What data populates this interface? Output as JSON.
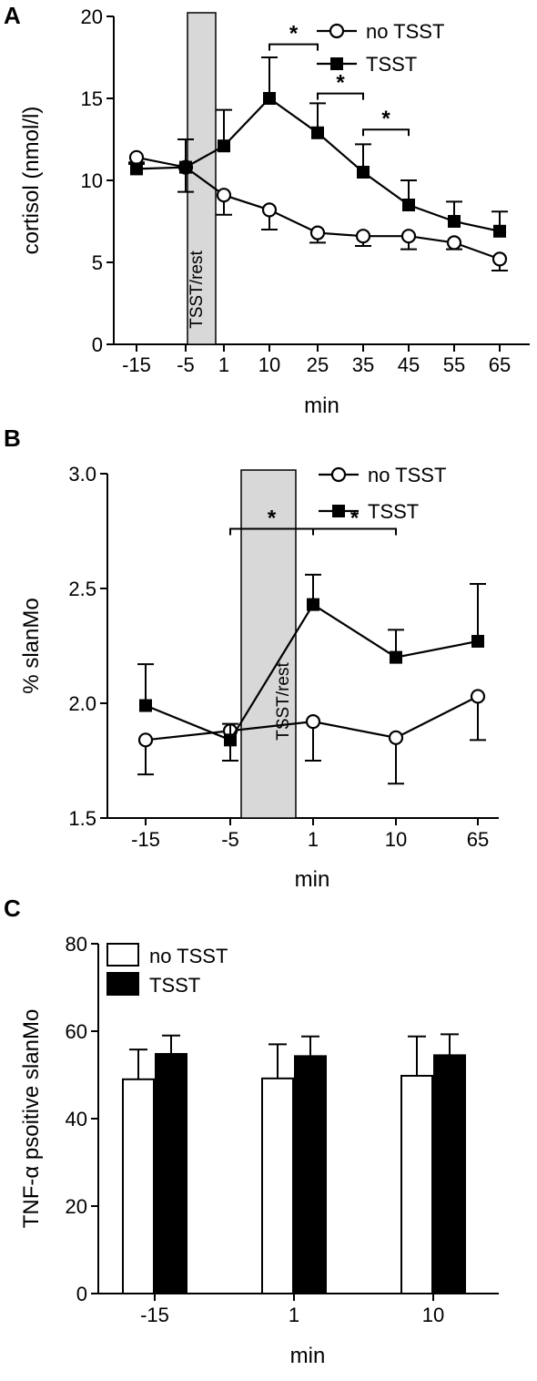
{
  "chart_data": [
    {
      "panel": "A",
      "type": "line",
      "categories": [
        "-15",
        "-5",
        "1",
        "10",
        "25",
        "35",
        "45",
        "55",
        "65"
      ],
      "xlabel": "min",
      "ylabel": "cortisol (nmol/l)",
      "ylim": [
        0,
        20
      ],
      "yticks": [
        0,
        5,
        10,
        15,
        20
      ],
      "band_label": "TSST/rest",
      "band_between": [
        1,
        2
      ],
      "series": [
        {
          "name": "no TSST",
          "marker": "open-circle",
          "values": [
            11.4,
            10.8,
            9.1,
            8.2,
            6.8,
            6.6,
            6.6,
            6.2,
            5.2
          ],
          "errors": [
            0.3,
            1.5,
            1.2,
            1.2,
            0.6,
            0.6,
            0.8,
            0.4,
            0.7
          ]
        },
        {
          "name": "TSST",
          "marker": "filled-square",
          "values": [
            10.7,
            10.8,
            12.1,
            15.0,
            12.9,
            10.5,
            8.5,
            7.5,
            6.9
          ],
          "errors": [
            0.3,
            1.7,
            2.2,
            2.5,
            1.8,
            1.7,
            1.5,
            1.2,
            1.2
          ]
        }
      ],
      "significance": [
        {
          "from": 3,
          "to": 4,
          "label": "*",
          "y": 18.3
        },
        {
          "from": 4,
          "to": 5,
          "label": "*",
          "y": 15.3
        },
        {
          "from": 5,
          "to": 6,
          "label": "*",
          "y": 13.1
        }
      ],
      "legend": "top-right"
    },
    {
      "panel": "B",
      "type": "line",
      "categories": [
        "-15",
        "-5",
        "1",
        "10",
        "65"
      ],
      "xlabel": "min",
      "ylabel": "% slanMo",
      "ylim": [
        1.5,
        3.0
      ],
      "yticks": [
        1.5,
        2.0,
        2.5,
        3.0
      ],
      "band_label": "TSST/rest",
      "band_between": [
        1,
        2
      ],
      "series": [
        {
          "name": "no TSST",
          "marker": "open-circle",
          "values": [
            1.84,
            1.88,
            1.92,
            1.85,
            2.03
          ],
          "errors": [
            0.15,
            0.13,
            0.17,
            0.2,
            0.19
          ]
        },
        {
          "name": "TSST",
          "marker": "filled-square",
          "values": [
            1.99,
            1.84,
            2.43,
            2.2,
            2.27
          ],
          "errors": [
            0.18,
            0.07,
            0.13,
            0.12,
            0.25
          ]
        }
      ],
      "significance": [
        {
          "from": 1,
          "to": 2,
          "label": "*",
          "y": 2.76
        },
        {
          "from": 2,
          "to": 3,
          "label": "*",
          "y": 2.76
        }
      ],
      "legend": "top-right"
    },
    {
      "panel": "C",
      "type": "bar",
      "categories": [
        "-15",
        "1",
        "10"
      ],
      "xlabel": "min",
      "ylabel": "TNF-α psoitive slanMo",
      "ylim": [
        0,
        80
      ],
      "yticks": [
        0,
        20,
        40,
        60,
        80
      ],
      "series": [
        {
          "name": "no TSST",
          "fill": "#ffffff",
          "values": [
            49.0,
            49.2,
            49.8
          ],
          "errors": [
            6.8,
            7.8,
            9.0
          ]
        },
        {
          "name": "TSST",
          "fill": "#000000",
          "values": [
            54.8,
            54.3,
            54.5
          ],
          "errors": [
            4.2,
            4.5,
            4.8
          ]
        }
      ],
      "legend": "top-left"
    }
  ]
}
